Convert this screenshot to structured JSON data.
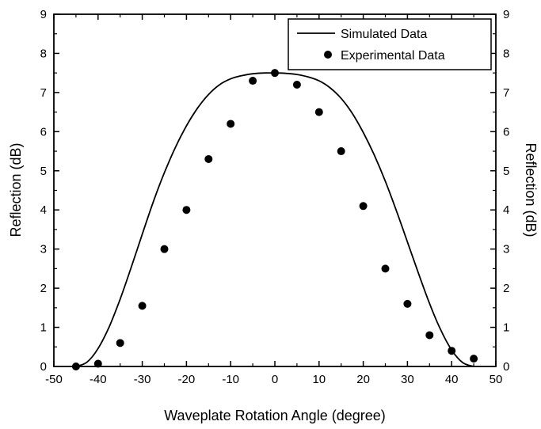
{
  "chart_data": {
    "type": "line+scatter",
    "xlabel": "Waveplate Rotation Angle (degree)",
    "ylabel": "Reflection (dB)",
    "ylabel_right": "Reflection (dB)",
    "xlim": [
      -50,
      50
    ],
    "ylim": [
      0,
      9
    ],
    "xticks": [
      -50,
      -40,
      -30,
      -20,
      -10,
      0,
      10,
      20,
      30,
      40,
      50
    ],
    "yticks": [
      0,
      1,
      2,
      3,
      4,
      5,
      6,
      7,
      8,
      9
    ],
    "grid": false,
    "legend_position": "top-right",
    "series": [
      {
        "name": "Simulated Data",
        "kind": "line",
        "color": "#000000",
        "x": [
          -45,
          -42.5,
          -40,
          -37.5,
          -35,
          -32.5,
          -30,
          -27.5,
          -25,
          -22.5,
          -20,
          -17.5,
          -15,
          -12.5,
          -10,
          -7.5,
          -5,
          -2.5,
          0,
          2.5,
          5,
          7.5,
          10,
          12.5,
          15,
          17.5,
          20,
          22.5,
          25,
          27.5,
          30,
          32.5,
          35,
          37.5,
          40,
          42.5,
          45
        ],
        "y": [
          0,
          0.11,
          0.46,
          1.01,
          1.72,
          2.53,
          3.38,
          4.21,
          4.95,
          5.6,
          6.15,
          6.6,
          6.95,
          7.2,
          7.35,
          7.43,
          7.48,
          7.5,
          7.5,
          7.49,
          7.46,
          7.4,
          7.3,
          7.12,
          6.85,
          6.47,
          5.98,
          5.4,
          4.73,
          3.98,
          3.18,
          2.38,
          1.61,
          0.94,
          0.42,
          0.1,
          0
        ]
      },
      {
        "name": "Experimental Data",
        "kind": "scatter",
        "color": "#000000",
        "x": [
          -45,
          -40,
          -35,
          -30,
          -25,
          -20,
          -15,
          -10,
          -5,
          0,
          5,
          10,
          15,
          20,
          25,
          30,
          35,
          40,
          45
        ],
        "y": [
          0.0,
          0.07,
          0.6,
          1.55,
          3.0,
          4.0,
          5.3,
          6.2,
          7.3,
          7.5,
          7.2,
          6.5,
          5.5,
          4.1,
          2.5,
          1.6,
          0.8,
          0.4,
          0.2
        ]
      }
    ]
  }
}
